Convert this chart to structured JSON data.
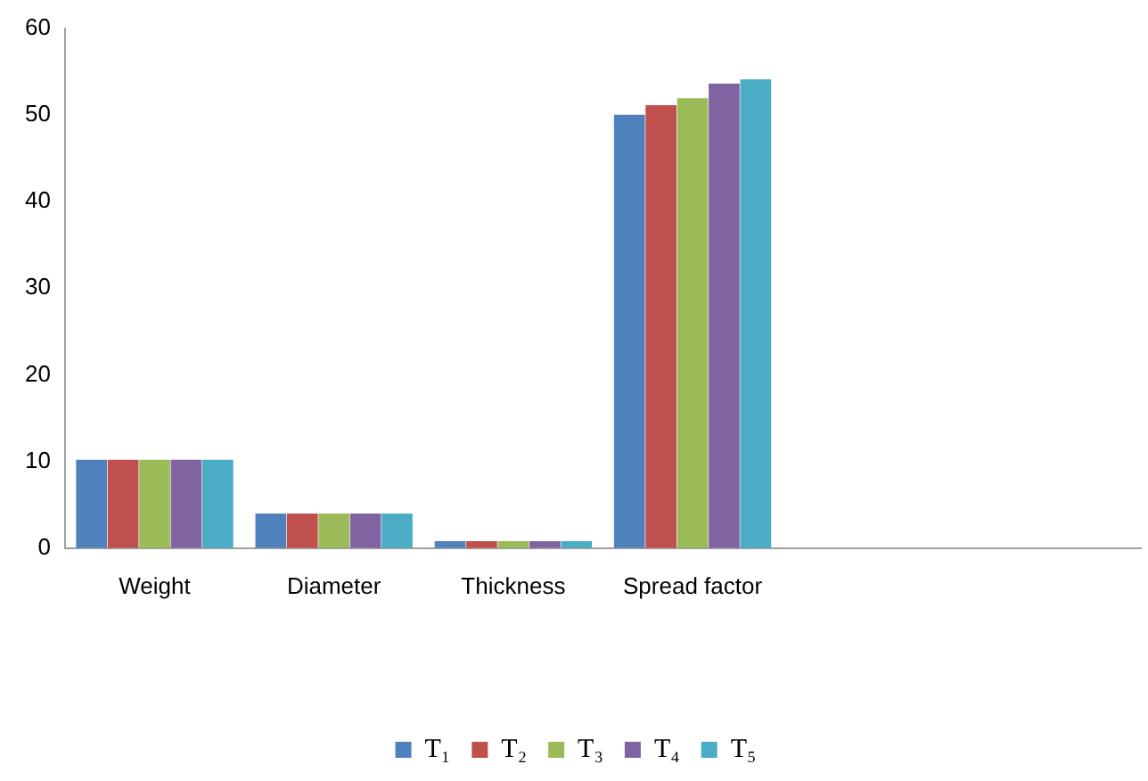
{
  "chart_data": {
    "type": "bar",
    "categories": [
      "Weight",
      "Diameter",
      "Thickness",
      "Spread factor",
      null,
      null
    ],
    "series": [
      {
        "name": "T₁",
        "color": "#4f81bd",
        "values": [
          10.2,
          4.0,
          0.8,
          50.0,
          null,
          null
        ]
      },
      {
        "name": "T₂",
        "color": "#c0504d",
        "values": [
          10.2,
          4.0,
          0.8,
          51.1,
          null,
          null
        ]
      },
      {
        "name": "T₃",
        "color": "#9bbb59",
        "values": [
          10.2,
          4.0,
          0.8,
          51.9,
          null,
          null
        ]
      },
      {
        "name": "T₄",
        "color": "#8064a2",
        "values": [
          10.2,
          4.0,
          0.8,
          53.6,
          null,
          null
        ]
      },
      {
        "name": "T₅",
        "color": "#4bacc6",
        "values": [
          10.2,
          4.0,
          0.8,
          54.1,
          null,
          null
        ]
      }
    ],
    "ylim": [
      0,
      60
    ],
    "yticks": [
      0,
      10,
      20,
      30,
      40,
      50,
      60
    ],
    "grid": false,
    "legend": "bottom"
  }
}
